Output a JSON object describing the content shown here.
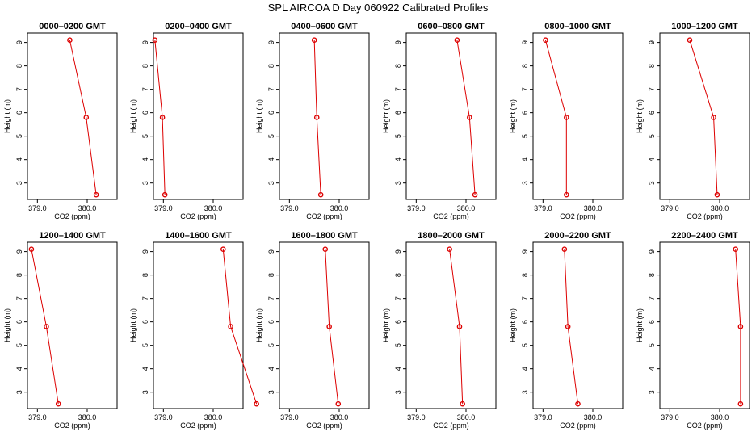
{
  "figure": {
    "title": "SPL AIRCOA D  Day 060922  Calibrated Profiles"
  },
  "chart_data": [
    {
      "type": "line",
      "title": "0000–0200 GMT",
      "xlabel": "CO2 (ppm)",
      "ylabel": "Height (m)",
      "xlim": [
        378.8,
        380.6
      ],
      "ylim": [
        2.3,
        9.4
      ],
      "x_ticks": [
        "379.0",
        "380.0"
      ],
      "y_ticks": [
        "3",
        "4",
        "5",
        "6",
        "7",
        "8",
        "9"
      ],
      "grid": false,
      "marker_color": "#dd0000",
      "series": [
        {
          "x": [
            379.65,
            379.98,
            380.18
          ],
          "y": [
            9.1,
            5.8,
            2.5
          ]
        }
      ]
    },
    {
      "type": "line",
      "title": "0200–0400 GMT",
      "xlabel": "CO2 (ppm)",
      "ylabel": "Height (m)",
      "xlim": [
        378.8,
        380.6
      ],
      "ylim": [
        2.3,
        9.4
      ],
      "x_ticks": [
        "379.0",
        "380.0"
      ],
      "y_ticks": [
        "3",
        "4",
        "5",
        "6",
        "7",
        "8",
        "9"
      ],
      "grid": false,
      "marker_color": "#dd0000",
      "series": [
        {
          "x": [
            378.83,
            378.98,
            379.03
          ],
          "y": [
            9.1,
            5.8,
            2.5
          ]
        }
      ]
    },
    {
      "type": "line",
      "title": "0400–0600 GMT",
      "xlabel": "CO2 (ppm)",
      "ylabel": "Height (m)",
      "xlim": [
        378.8,
        380.6
      ],
      "ylim": [
        2.3,
        9.4
      ],
      "x_ticks": [
        "379.0",
        "380.0"
      ],
      "y_ticks": [
        "3",
        "4",
        "5",
        "6",
        "7",
        "8",
        "9"
      ],
      "grid": false,
      "marker_color": "#dd0000",
      "series": [
        {
          "x": [
            379.5,
            379.55,
            379.63
          ],
          "y": [
            9.1,
            5.8,
            2.5
          ]
        }
      ]
    },
    {
      "type": "line",
      "title": "0600–0800 GMT",
      "xlabel": "CO2 (ppm)",
      "ylabel": "Height (m)",
      "xlim": [
        378.8,
        380.6
      ],
      "ylim": [
        2.3,
        9.4
      ],
      "x_ticks": [
        "379.0",
        "380.0"
      ],
      "y_ticks": [
        "3",
        "4",
        "5",
        "6",
        "7",
        "8",
        "9"
      ],
      "grid": false,
      "marker_color": "#dd0000",
      "series": [
        {
          "x": [
            379.82,
            380.07,
            380.18
          ],
          "y": [
            9.1,
            5.8,
            2.5
          ]
        }
      ]
    },
    {
      "type": "line",
      "title": "0800–1000 GMT",
      "xlabel": "CO2 (ppm)",
      "ylabel": "Height (m)",
      "xlim": [
        378.8,
        380.6
      ],
      "ylim": [
        2.3,
        9.4
      ],
      "x_ticks": [
        "379.0",
        "380.0"
      ],
      "y_ticks": [
        "3",
        "4",
        "5",
        "6",
        "7",
        "8",
        "9"
      ],
      "grid": false,
      "marker_color": "#dd0000",
      "series": [
        {
          "x": [
            379.05,
            379.47,
            379.47
          ],
          "y": [
            9.1,
            5.8,
            2.5
          ]
        }
      ]
    },
    {
      "type": "line",
      "title": "1000–1200 GMT",
      "xlabel": "CO2 (ppm)",
      "ylabel": "Height (m)",
      "xlim": [
        378.8,
        380.6
      ],
      "ylim": [
        2.3,
        9.4
      ],
      "x_ticks": [
        "379.0",
        "380.0"
      ],
      "y_ticks": [
        "3",
        "4",
        "5",
        "6",
        "7",
        "8",
        "9"
      ],
      "grid": false,
      "marker_color": "#dd0000",
      "series": [
        {
          "x": [
            379.4,
            379.88,
            379.95
          ],
          "y": [
            9.1,
            5.8,
            2.5
          ]
        }
      ]
    },
    {
      "type": "line",
      "title": "1200–1400 GMT",
      "xlabel": "CO2 (ppm)",
      "ylabel": "Height (m)",
      "xlim": [
        378.8,
        380.6
      ],
      "ylim": [
        2.3,
        9.4
      ],
      "x_ticks": [
        "379.0",
        "380.0"
      ],
      "y_ticks": [
        "3",
        "4",
        "5",
        "6",
        "7",
        "8",
        "9"
      ],
      "grid": false,
      "marker_color": "#dd0000",
      "series": [
        {
          "x": [
            378.88,
            379.18,
            379.42
          ],
          "y": [
            9.1,
            5.8,
            2.5
          ]
        }
      ]
    },
    {
      "type": "line",
      "title": "1400–1600 GMT",
      "xlabel": "CO2 (ppm)",
      "ylabel": "Height (m)",
      "xlim": [
        378.8,
        380.6
      ],
      "ylim": [
        2.3,
        9.4
      ],
      "x_ticks": [
        "379.0",
        "380.0"
      ],
      "y_ticks": [
        "3",
        "4",
        "5",
        "6",
        "7",
        "8",
        "9"
      ],
      "grid": false,
      "marker_color": "#dd0000",
      "series": [
        {
          "x": [
            380.2,
            380.35,
            380.87
          ],
          "y": [
            9.1,
            5.8,
            2.5
          ]
        }
      ]
    },
    {
      "type": "line",
      "title": "1600–1800 GMT",
      "xlabel": "CO2 (ppm)",
      "ylabel": "Height (m)",
      "xlim": [
        378.8,
        380.6
      ],
      "ylim": [
        2.3,
        9.4
      ],
      "x_ticks": [
        "379.0",
        "380.0"
      ],
      "y_ticks": [
        "3",
        "4",
        "5",
        "6",
        "7",
        "8",
        "9"
      ],
      "grid": false,
      "marker_color": "#dd0000",
      "series": [
        {
          "x": [
            379.72,
            379.8,
            379.98
          ],
          "y": [
            9.1,
            5.8,
            2.5
          ]
        }
      ]
    },
    {
      "type": "line",
      "title": "1800–2000 GMT",
      "xlabel": "CO2 (ppm)",
      "ylabel": "Height (m)",
      "xlim": [
        378.8,
        380.6
      ],
      "ylim": [
        2.3,
        9.4
      ],
      "x_ticks": [
        "379.0",
        "380.0"
      ],
      "y_ticks": [
        "3",
        "4",
        "5",
        "6",
        "7",
        "8",
        "9"
      ],
      "grid": false,
      "marker_color": "#dd0000",
      "series": [
        {
          "x": [
            379.67,
            379.87,
            379.93
          ],
          "y": [
            9.1,
            5.8,
            2.5
          ]
        }
      ]
    },
    {
      "type": "line",
      "title": "2000–2200 GMT",
      "xlabel": "CO2 (ppm)",
      "ylabel": "Height (m)",
      "xlim": [
        378.8,
        380.6
      ],
      "ylim": [
        2.3,
        9.4
      ],
      "x_ticks": [
        "379.0",
        "380.0"
      ],
      "y_ticks": [
        "3",
        "4",
        "5",
        "6",
        "7",
        "8",
        "9"
      ],
      "grid": false,
      "marker_color": "#dd0000",
      "series": [
        {
          "x": [
            379.43,
            379.5,
            379.7
          ],
          "y": [
            9.1,
            5.8,
            2.5
          ]
        }
      ]
    },
    {
      "type": "line",
      "title": "2200–2400 GMT",
      "xlabel": "CO2 (ppm)",
      "ylabel": "Height (m)",
      "xlim": [
        378.8,
        380.6
      ],
      "ylim": [
        2.3,
        9.4
      ],
      "x_ticks": [
        "379.0",
        "380.0"
      ],
      "y_ticks": [
        "3",
        "4",
        "5",
        "6",
        "7",
        "8",
        "9"
      ],
      "grid": false,
      "marker_color": "#dd0000",
      "series": [
        {
          "x": [
            380.32,
            380.42,
            380.42
          ],
          "y": [
            9.1,
            5.8,
            2.5
          ]
        }
      ]
    }
  ]
}
